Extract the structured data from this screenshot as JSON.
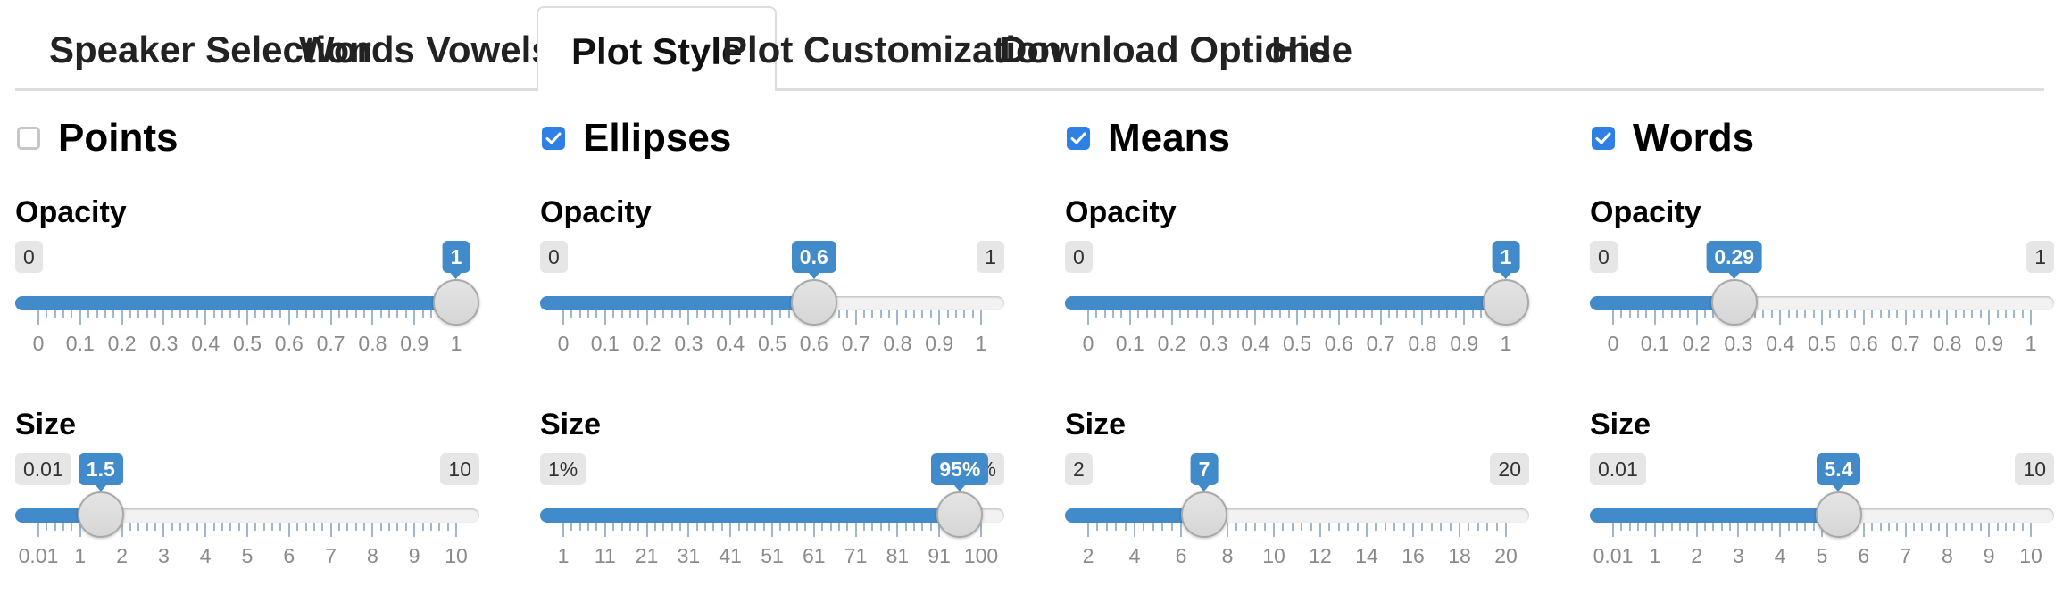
{
  "tabs": [
    {
      "label": "Speaker Selection",
      "active": false
    },
    {
      "label": "Words",
      "active": false
    },
    {
      "label": "Vowels",
      "active": false
    },
    {
      "label": "Plot Style",
      "active": true
    },
    {
      "label": "Plot Customization",
      "active": false
    },
    {
      "label": "Download Options",
      "active": false
    },
    {
      "label": "Hide",
      "active": false
    }
  ],
  "columns": [
    {
      "checkbox": {
        "label": "Points",
        "checked": false
      },
      "opacity": {
        "label": "Opacity",
        "min_label": "0",
        "max_label": "1",
        "value_label": "1",
        "min": 0,
        "max": 1,
        "value": 1,
        "grid": [
          "0",
          "0.1",
          "0.2",
          "0.3",
          "0.4",
          "0.5",
          "0.6",
          "0.7",
          "0.8",
          "0.9",
          "1"
        ]
      },
      "size": {
        "label": "Size",
        "min_label": "0.01",
        "max_label": "10",
        "value_label": "1.5",
        "min": 0.01,
        "max": 10,
        "value": 1.5,
        "grid": [
          "0.01",
          "1",
          "2",
          "3",
          "4",
          "5",
          "6",
          "7",
          "8",
          "9",
          "10"
        ]
      }
    },
    {
      "checkbox": {
        "label": "Ellipses",
        "checked": true
      },
      "opacity": {
        "label": "Opacity",
        "min_label": "0",
        "max_label": "1",
        "value_label": "0.6",
        "min": 0,
        "max": 1,
        "value": 0.6,
        "grid": [
          "0",
          "0.1",
          "0.2",
          "0.3",
          "0.4",
          "0.5",
          "0.6",
          "0.7",
          "0.8",
          "0.9",
          "1"
        ]
      },
      "size": {
        "label": "Size",
        "min_label": "1%",
        "max_label": "100%",
        "value_label": "95%",
        "min": 1,
        "max": 100,
        "value": 95,
        "grid": [
          "1",
          "11",
          "21",
          "31",
          "41",
          "51",
          "61",
          "71",
          "81",
          "91",
          "100"
        ]
      }
    },
    {
      "checkbox": {
        "label": "Means",
        "checked": true
      },
      "opacity": {
        "label": "Opacity",
        "min_label": "0",
        "max_label": "1",
        "value_label": "1",
        "min": 0,
        "max": 1,
        "value": 1,
        "grid": [
          "0",
          "0.1",
          "0.2",
          "0.3",
          "0.4",
          "0.5",
          "0.6",
          "0.7",
          "0.8",
          "0.9",
          "1"
        ]
      },
      "size": {
        "label": "Size",
        "min_label": "2",
        "max_label": "20",
        "value_label": "7",
        "min": 2,
        "max": 20,
        "value": 7,
        "grid": [
          "2",
          "4",
          "6",
          "8",
          "10",
          "12",
          "14",
          "16",
          "18",
          "20"
        ]
      }
    },
    {
      "checkbox": {
        "label": "Words",
        "checked": true
      },
      "opacity": {
        "label": "Opacity",
        "min_label": "0",
        "max_label": "1",
        "value_label": "0.29",
        "min": 0,
        "max": 1,
        "value": 0.29,
        "grid": [
          "0",
          "0.1",
          "0.2",
          "0.3",
          "0.4",
          "0.5",
          "0.6",
          "0.7",
          "0.8",
          "0.9",
          "1"
        ]
      },
      "size": {
        "label": "Size",
        "min_label": "0.01",
        "max_label": "10",
        "value_label": "5.4",
        "min": 0.01,
        "max": 10,
        "value": 5.4,
        "grid": [
          "0.01",
          "1",
          "2",
          "3",
          "4",
          "5",
          "6",
          "7",
          "8",
          "9",
          "10"
        ]
      }
    }
  ],
  "colors": {
    "accent": "#428bca",
    "checkbox": "#2f80e4",
    "tick": "#9fb8cf",
    "badge": "#e6e6e6"
  }
}
